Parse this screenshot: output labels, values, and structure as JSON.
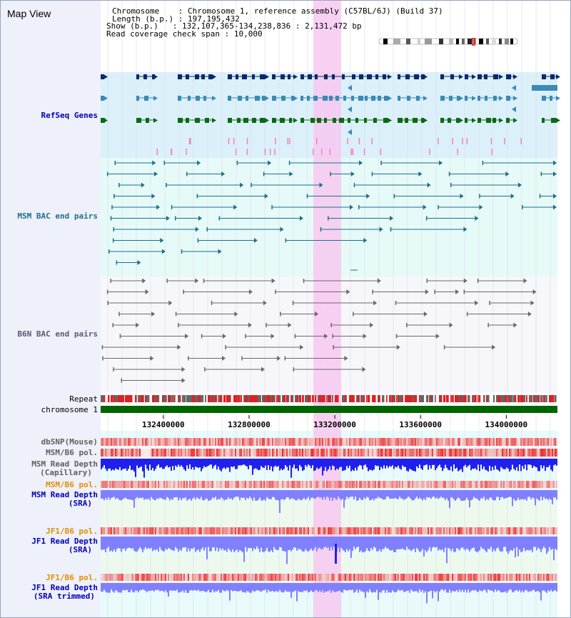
{
  "header": {
    "title": "Map View",
    "info": [
      {
        "label": "Chromosome",
        "value": "Chromosome 1, reference assembly (C57BL/6J) (Build 37)"
      },
      {
        "label": "Length (b.p.)",
        "value": "197,195,432"
      },
      {
        "label": "Show (b.p.)",
        "value": "132,107,365-134,238,836 : 2,131,472 bp"
      },
      {
        "label": "Read coverage check span",
        "value": "10,000"
      }
    ]
  },
  "axis": {
    "labels": [
      "132400000",
      "132800000",
      "133200000",
      "133600000",
      "134000000"
    ],
    "positions": [
      132400000,
      132800000,
      133200000,
      133600000,
      134000000
    ],
    "range": [
      132107365,
      134238836
    ]
  },
  "highlight": {
    "start": 133100000,
    "end": 133230000
  },
  "tracks": [
    {
      "id": "refseq",
      "label": "RefSeq Genes",
      "color": "#0000bb",
      "bold": true,
      "bg": "#dcf0fa"
    },
    {
      "id": "msm-bac",
      "label": "MSM BAC end pairs",
      "color": "#1f6f8b",
      "bold": true,
      "bg": "#e6faf8"
    },
    {
      "id": "b6n-bac",
      "label": "B6N BAC end pairs",
      "color": "#5a5a6e",
      "bold": true,
      "bg": "#f7f7fb"
    },
    {
      "id": "repeat",
      "label": "Repeat",
      "color": "#000000",
      "bold": false
    },
    {
      "id": "chrom",
      "label": "chromosome 1",
      "color": "#000000",
      "bold": false
    },
    {
      "id": "dbsnp",
      "label": "dbSNP(Mouse)",
      "color": "#606060",
      "bold": true
    },
    {
      "id": "msm-b6-pol",
      "label": "MSM/B6 pol.",
      "color": "#606060",
      "bold": true
    },
    {
      "id": "msm-depth-cap",
      "label": "MSM Read Depth\n(Capillary)",
      "color": "#606060",
      "bold": true
    },
    {
      "id": "msm-b6-pol-2",
      "label": "MSM/B6 pol.",
      "color": "#e09000",
      "bold": true
    },
    {
      "id": "msm-depth-sra",
      "label": "MSM Read Depth\n(SRA)",
      "color": "#0000bb",
      "bold": true
    },
    {
      "id": "jf1-b6-pol",
      "label": "JF1/B6 pol.",
      "color": "#e09000",
      "bold": true
    },
    {
      "id": "jf1-depth-sra",
      "label": "JF1 Read Depth\n(SRA)",
      "color": "#0000bb",
      "bold": true
    },
    {
      "id": "jf1-b6-pol-2",
      "label": "JF1/B6 pol.",
      "color": "#e09000",
      "bold": true
    },
    {
      "id": "jf1-depth-trim",
      "label": "JF1 Read Depth\n(SRA trimmed)",
      "color": "#0000bb",
      "bold": true
    }
  ],
  "colors": {
    "gene_dark": "#0a2a6a",
    "gene_mid": "#3a8ab8",
    "gene_green": "#0a6a14",
    "gene_pink": "#f080c0",
    "bac_msm": "#1f6f8b",
    "bac_b6n": "#6a6a6a",
    "chromosome": "#006400",
    "repeat_red": "#dd2222",
    "repeat_gray": "#666666",
    "depth_blue": "#2020ee",
    "depth_light": "#8080ff",
    "highlight": "#f8c8f0"
  }
}
